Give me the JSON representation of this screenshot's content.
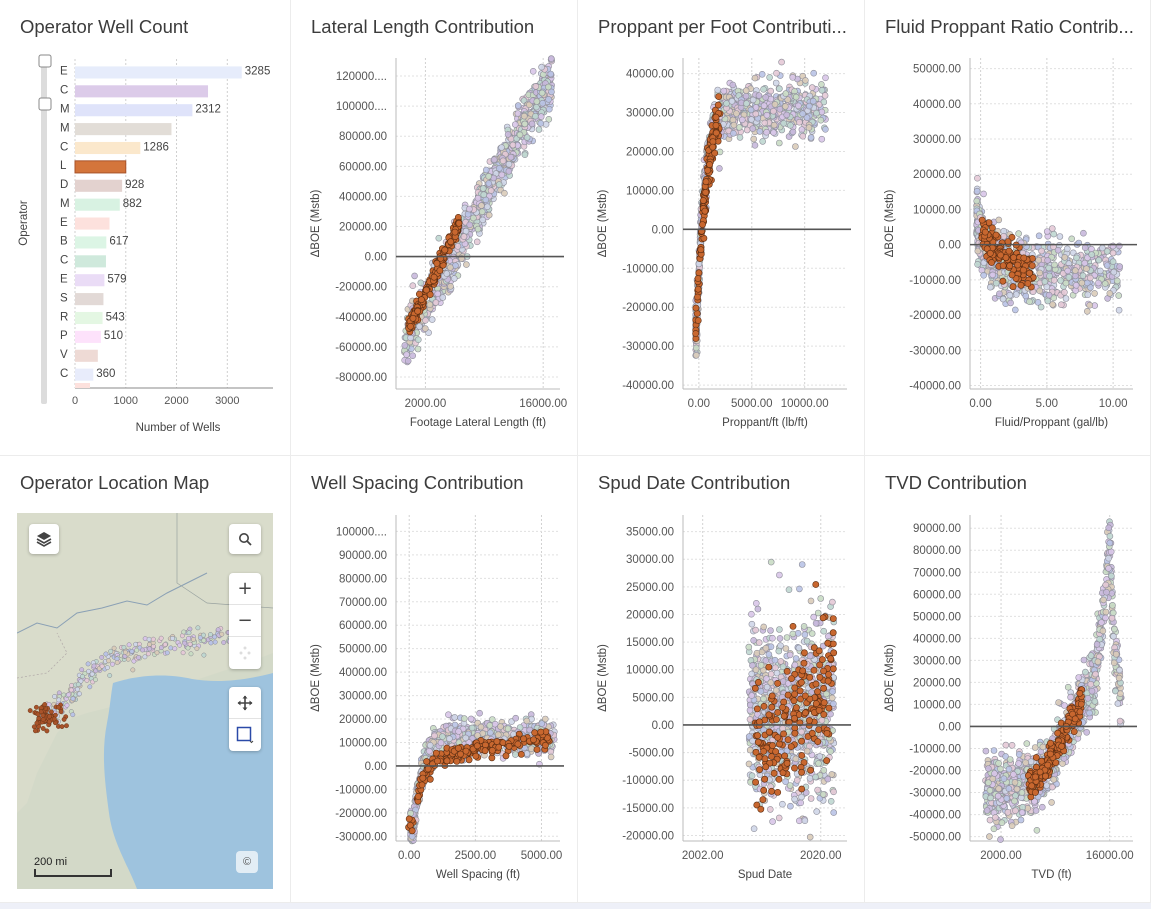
{
  "panels": {
    "operator_well_count": "Operator Well Count",
    "lateral": "Lateral Length Contribution",
    "proppant": "Proppant per Foot Contributi...",
    "fluid": "Fluid Proppant Ratio Contrib...",
    "map": "Operator Location Map",
    "spacing": "Well Spacing Contribution",
    "spud": "Spud Date Contribution",
    "tvd": "TVD Contribution"
  },
  "map": {
    "scale_label": "200 mi",
    "copyright": "©"
  },
  "chart_data": [
    {
      "id": "operator_well_count",
      "type": "bar",
      "orientation": "horizontal",
      "xlabel": "Number of Wells",
      "ylabel": "Operator",
      "xticks": [
        0,
        1000,
        2000,
        3000
      ],
      "xlim": [
        0,
        3900
      ],
      "grid": true,
      "categories": [
        "E",
        "C",
        "M",
        "M",
        "C",
        "L",
        "D",
        "M",
        "E",
        "B",
        "C",
        "E",
        "S",
        "R",
        "P",
        "V",
        "C"
      ],
      "values": [
        3285,
        2620,
        2312,
        1900,
        1286,
        1000,
        928,
        882,
        680,
        617,
        610,
        579,
        560,
        543,
        510,
        450,
        360
      ],
      "labels": [
        "3285",
        "",
        "2312",
        "",
        "1286",
        "",
        "928",
        "882",
        "",
        "617",
        "",
        "579",
        "",
        "543",
        "510",
        "",
        "360"
      ],
      "colors": [
        "#e6ecfb",
        "#dccbe9",
        "#dfe3fa",
        "#e2ddd7",
        "#fbe8cc",
        "#d4753b",
        "#e3d2cf",
        "#d8f2e2",
        "#fde1dd",
        "#dcf5e5",
        "#cfe9dc",
        "#eadcf6",
        "#e2d9d6",
        "#e4f7e3",
        "#fde2fb",
        "#eedad5",
        "#e8ecfb"
      ],
      "highlight_index": 5
    },
    {
      "id": "lateral",
      "type": "scatter",
      "xlabel": "Footage Lateral Length (ft)",
      "ylabel": "ΔBOE (Mstb)",
      "xlim": [
        -1500,
        18000
      ],
      "ylim": [
        -88000,
        132000
      ],
      "xticks": [
        2000,
        16000
      ],
      "xtick_labels": [
        "2000.00",
        "16000.00"
      ],
      "yticks": [
        120000,
        100000,
        80000,
        60000,
        40000,
        20000,
        0,
        -20000,
        -40000,
        -60000,
        -80000
      ],
      "ytick_labels": [
        "120000....",
        "100000....",
        "80000.00",
        "60000.00",
        "40000.00",
        "20000.00",
        "0.00",
        "-20000.00",
        "-40000.00",
        "-60000.00",
        "-80000.00"
      ],
      "zero_line": true,
      "trend": {
        "kind": "linear",
        "x": [
          -500,
          17000
        ],
        "y": [
          -57000,
          120000
        ],
        "spread": 9000,
        "count": 900
      },
      "highlight": {
        "x": [
          0,
          6000
        ],
        "y": [
          -37000,
          53000
        ],
        "spread": 3000,
        "count": 180
      }
    },
    {
      "id": "proppant",
      "type": "scatter",
      "xlabel": "Proppant/ft (lb/ft)",
      "ylabel": "ΔBOE (Mstb)",
      "xlim": [
        -1500,
        14000
      ],
      "ylim": [
        -41000,
        44000
      ],
      "xticks": [
        0,
        5000,
        10000
      ],
      "xtick_labels": [
        "0.00",
        "5000.00",
        "10000.00"
      ],
      "yticks": [
        40000,
        30000,
        20000,
        10000,
        0,
        -10000,
        -20000,
        -30000,
        -40000
      ],
      "ytick_labels": [
        "40000.00",
        "30000.00",
        "20000.00",
        "10000.00",
        "0.00",
        "-10000.00",
        "-20000.00",
        "-30000.00",
        "-40000.00"
      ],
      "zero_line": true,
      "trend": {
        "kind": "saturating",
        "x0": -200,
        "k": 700,
        "ymin": -25000,
        "ymax": 31000,
        "xmax": 12000,
        "spread": 3500,
        "count": 800
      },
      "highlight": {
        "x": [
          -300,
          2000
        ],
        "y": [
          -22000,
          32000
        ],
        "spread": 2500,
        "count": 150
      }
    },
    {
      "id": "fluid",
      "type": "scatter",
      "xlabel": "Fluid/Proppant (gal/lb)",
      "ylabel": "ΔBOE (Mstb)",
      "xlim": [
        -0.8,
        11.5
      ],
      "ylim": [
        -41000,
        53000
      ],
      "xticks": [
        0,
        5,
        10
      ],
      "xtick_labels": [
        "0.00",
        "5.00",
        "10.00"
      ],
      "yticks": [
        50000,
        40000,
        30000,
        20000,
        10000,
        0,
        -10000,
        -20000,
        -30000,
        -40000
      ],
      "ytick_labels": [
        "50000.00",
        "40000.00",
        "30000.00",
        "20000.00",
        "10000.00",
        "0.00",
        "-10000.00",
        "-20000.00",
        "-30000.00",
        "-40000.00"
      ],
      "zero_line": true,
      "trend": {
        "kind": "decay",
        "xmin": -0.3,
        "xmax": 10.5,
        "a": 14000,
        "k": 0.9,
        "floor": -8000,
        "spread": 4500,
        "count": 800
      },
      "highlight": {
        "x": [
          0,
          4
        ],
        "y": [
          8000,
          -8000
        ],
        "spread": 3000,
        "count": 140
      }
    },
    {
      "id": "spacing",
      "type": "scatter",
      "xlabel": "Well Spacing (ft)",
      "ylabel": "ΔBOE (Mstb)",
      "xlim": [
        -500,
        5700
      ],
      "ylim": [
        -32000,
        107000
      ],
      "xticks": [
        0,
        2500,
        5000
      ],
      "xtick_labels": [
        "0.00",
        "2500.00",
        "5000.00"
      ],
      "yticks": [
        100000,
        90000,
        80000,
        70000,
        60000,
        50000,
        40000,
        30000,
        20000,
        10000,
        0,
        -10000,
        -20000,
        -30000
      ],
      "ytick_labels": [
        "100000....",
        "90000.00",
        "80000.00",
        "70000.00",
        "60000.00",
        "50000.00",
        "40000.00",
        "30000.00",
        "20000.00",
        "10000.00",
        "0.00",
        "-10000.00",
        "-20000.00",
        "-30000.00"
      ],
      "zero_line": true,
      "trend": {
        "kind": "saturating",
        "x0": 150,
        "k": 350,
        "ymin": -27000,
        "ymax": 12000,
        "xmax": 5500,
        "spread": 3500,
        "count": 800
      },
      "highlight": {
        "x": [
          -100,
          5300
        ],
        "y": [
          -20000,
          12000
        ],
        "spread": 2000,
        "count": 170
      }
    },
    {
      "id": "spud",
      "type": "scatter",
      "xlabel": "Spud Date",
      "ylabel": "ΔBOE (Mstb)",
      "xlim": [
        1999,
        2024
      ],
      "ylim": [
        -21000,
        38000
      ],
      "xticks": [
        2002,
        2020
      ],
      "xtick_labels": [
        "2002.00",
        "2020.00"
      ],
      "yticks": [
        35000,
        30000,
        25000,
        20000,
        15000,
        10000,
        5000,
        0,
        -5000,
        -10000,
        -15000,
        -20000
      ],
      "ytick_labels": [
        "35000.00",
        "30000.00",
        "25000.00",
        "20000.00",
        "15000.00",
        "10000.00",
        "5000.00",
        "0.00",
        "-5000.00",
        "-10000.00",
        "-15000.00",
        "-20000.00"
      ],
      "zero_line": true,
      "trend": {
        "kind": "cloud",
        "xmin": 2009,
        "xmax": 2022,
        "center": 2000,
        "spread": 9000,
        "count": 900
      },
      "highlight": {
        "x": [
          2010,
          2022
        ],
        "y": [
          -6000,
          9000
        ],
        "spread": 6000,
        "count": 200
      }
    },
    {
      "id": "tvd",
      "type": "scatter",
      "xlabel": "TVD (ft)",
      "ylabel": "ΔBOE (Mstb)",
      "xlim": [
        -2000,
        19000
      ],
      "ylim": [
        -52000,
        96000
      ],
      "xticks": [
        2000,
        16000
      ],
      "xtick_labels": [
        "2000.00",
        "16000.00"
      ],
      "yticks": [
        90000,
        80000,
        70000,
        60000,
        50000,
        40000,
        30000,
        20000,
        10000,
        0,
        -10000,
        -20000,
        -30000,
        -40000,
        -50000
      ],
      "ytick_labels": [
        "90000.00",
        "80000.00",
        "70000.00",
        "60000.00",
        "50000.00",
        "40000.00",
        "30000.00",
        "20000.00",
        "10000.00",
        "0.00",
        "-10000.00",
        "-20000.00",
        "-30000.00",
        "-40000.00",
        "-50000.00"
      ],
      "zero_line": true,
      "trend": {
        "kind": "piecewise",
        "pts": [
          [
            0,
            -30000
          ],
          [
            7000,
            -25000
          ],
          [
            12000,
            8000
          ],
          [
            14000,
            20000
          ],
          [
            15500,
            60000
          ],
          [
            16000,
            85000
          ],
          [
            16500,
            40000
          ],
          [
            17500,
            10000
          ]
        ],
        "spread": 7000,
        "count": 900
      },
      "highlight": {
        "x": [
          5500,
          12500
        ],
        "y": [
          -28000,
          10000
        ],
        "spread": 3500,
        "count": 180
      }
    }
  ]
}
